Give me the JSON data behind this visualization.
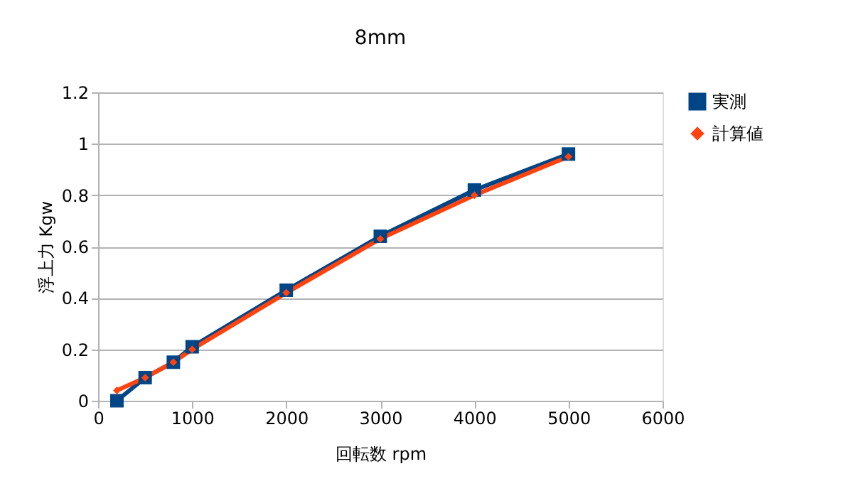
{
  "chart_data": {
    "type": "line",
    "title": "8mm",
    "xlabel": "回転数 rpm",
    "ylabel": "浮上力 Kgw",
    "x": [
      200,
      500,
      800,
      1000,
      2000,
      3000,
      4000,
      5000
    ],
    "series": [
      {
        "name": "実測",
        "color": "#004586",
        "marker": "square",
        "values": [
          0,
          0.09,
          0.15,
          0.21,
          0.43,
          0.64,
          0.82,
          0.96
        ]
      },
      {
        "name": "計算値",
        "color": "#ff420e",
        "marker": "diamond",
        "values": [
          0.04,
          0.09,
          0.15,
          0.2,
          0.42,
          0.63,
          0.8,
          0.95
        ]
      }
    ],
    "xlim": [
      0,
      6000
    ],
    "xticks": [
      0,
      1000,
      2000,
      3000,
      4000,
      5000,
      6000
    ],
    "ylim": [
      0,
      1.2
    ],
    "yticks": [
      0,
      0.2,
      0.4,
      0.6,
      0.8,
      1,
      1.2
    ],
    "grid": "y",
    "legend": "right"
  }
}
